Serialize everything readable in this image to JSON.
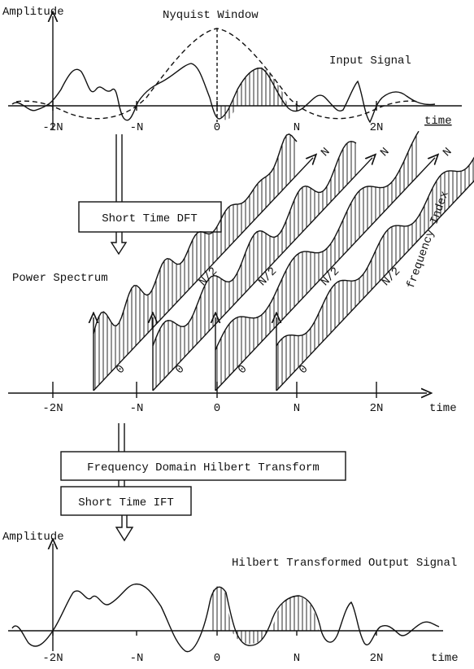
{
  "top_panel": {
    "axis_label": "Amplitude",
    "window_label": "Nyquist Window",
    "signal_label": "Input Signal",
    "ticks": [
      "-2N",
      "-N",
      "0",
      "N",
      "2N"
    ],
    "time_label": "time"
  },
  "dft_box": "Short Time DFT",
  "middle_panel": {
    "title": "Power Spectrum",
    "frequency_label": "frequency Index",
    "frames": [
      {
        "start": "0",
        "mid": "N/2",
        "end": "N"
      },
      {
        "start": "0",
        "mid": "N/2",
        "end": "N"
      },
      {
        "start": "0",
        "mid": "N/2",
        "end": "N"
      },
      {
        "start": "0",
        "mid": "N/2",
        "end": "N"
      }
    ],
    "ticks": [
      "-2N",
      "-N",
      "0",
      "N",
      "2N"
    ],
    "time_label": "time"
  },
  "hilbert_box": "Frequency Domain Hilbert Transform",
  "ift_box": "Short Time IFT",
  "bottom_panel": {
    "axis_label": "Amplitude",
    "signal_label": "Hilbert Transformed Output Signal",
    "ticks": [
      "-2N",
      "-N",
      "0",
      "N",
      "2N"
    ],
    "time_label": "time"
  }
}
